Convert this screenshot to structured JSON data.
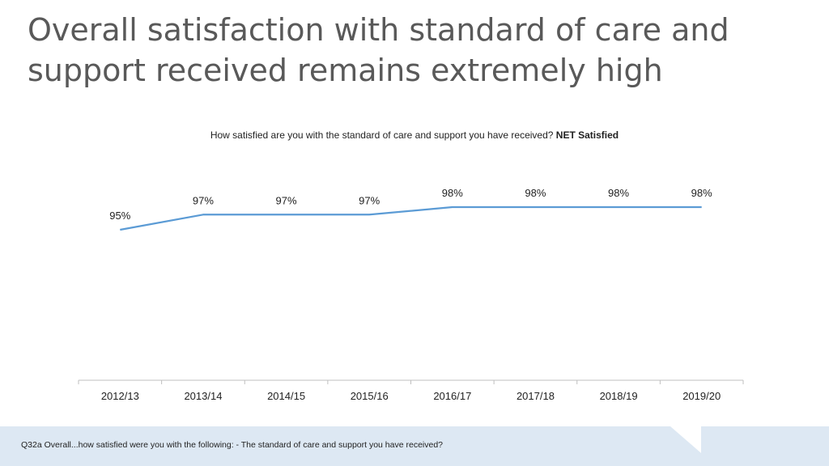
{
  "slide": {
    "title_line1": "Overall satisfaction with standard of care and",
    "title_line2": "support received remains extremely high",
    "question": "How satisfied  are you with the standard of care and support you have received?",
    "question_emphasis": "NET Satisfied",
    "footnote": "Q32a Overall...how satisfied were you with the following: - The standard of care and support you have received?"
  },
  "colors": {
    "line": "#5b9bd5",
    "axis": "#bfbfbf",
    "footer_band": "#dde8f3"
  },
  "chart_data": {
    "type": "line",
    "categories": [
      "2012/13",
      "2013/14",
      "2014/15",
      "2015/16",
      "2016/17",
      "2017/18",
      "2018/19",
      "2019/20"
    ],
    "series": [
      {
        "values": [
          95,
          97,
          97,
          97,
          98,
          98,
          98,
          98
        ],
        "labels": [
          "95%",
          "97%",
          "97%",
          "97%",
          "98%",
          "98%",
          "98%",
          "98%"
        ]
      }
    ],
    "grid": false,
    "legend": "none"
  }
}
